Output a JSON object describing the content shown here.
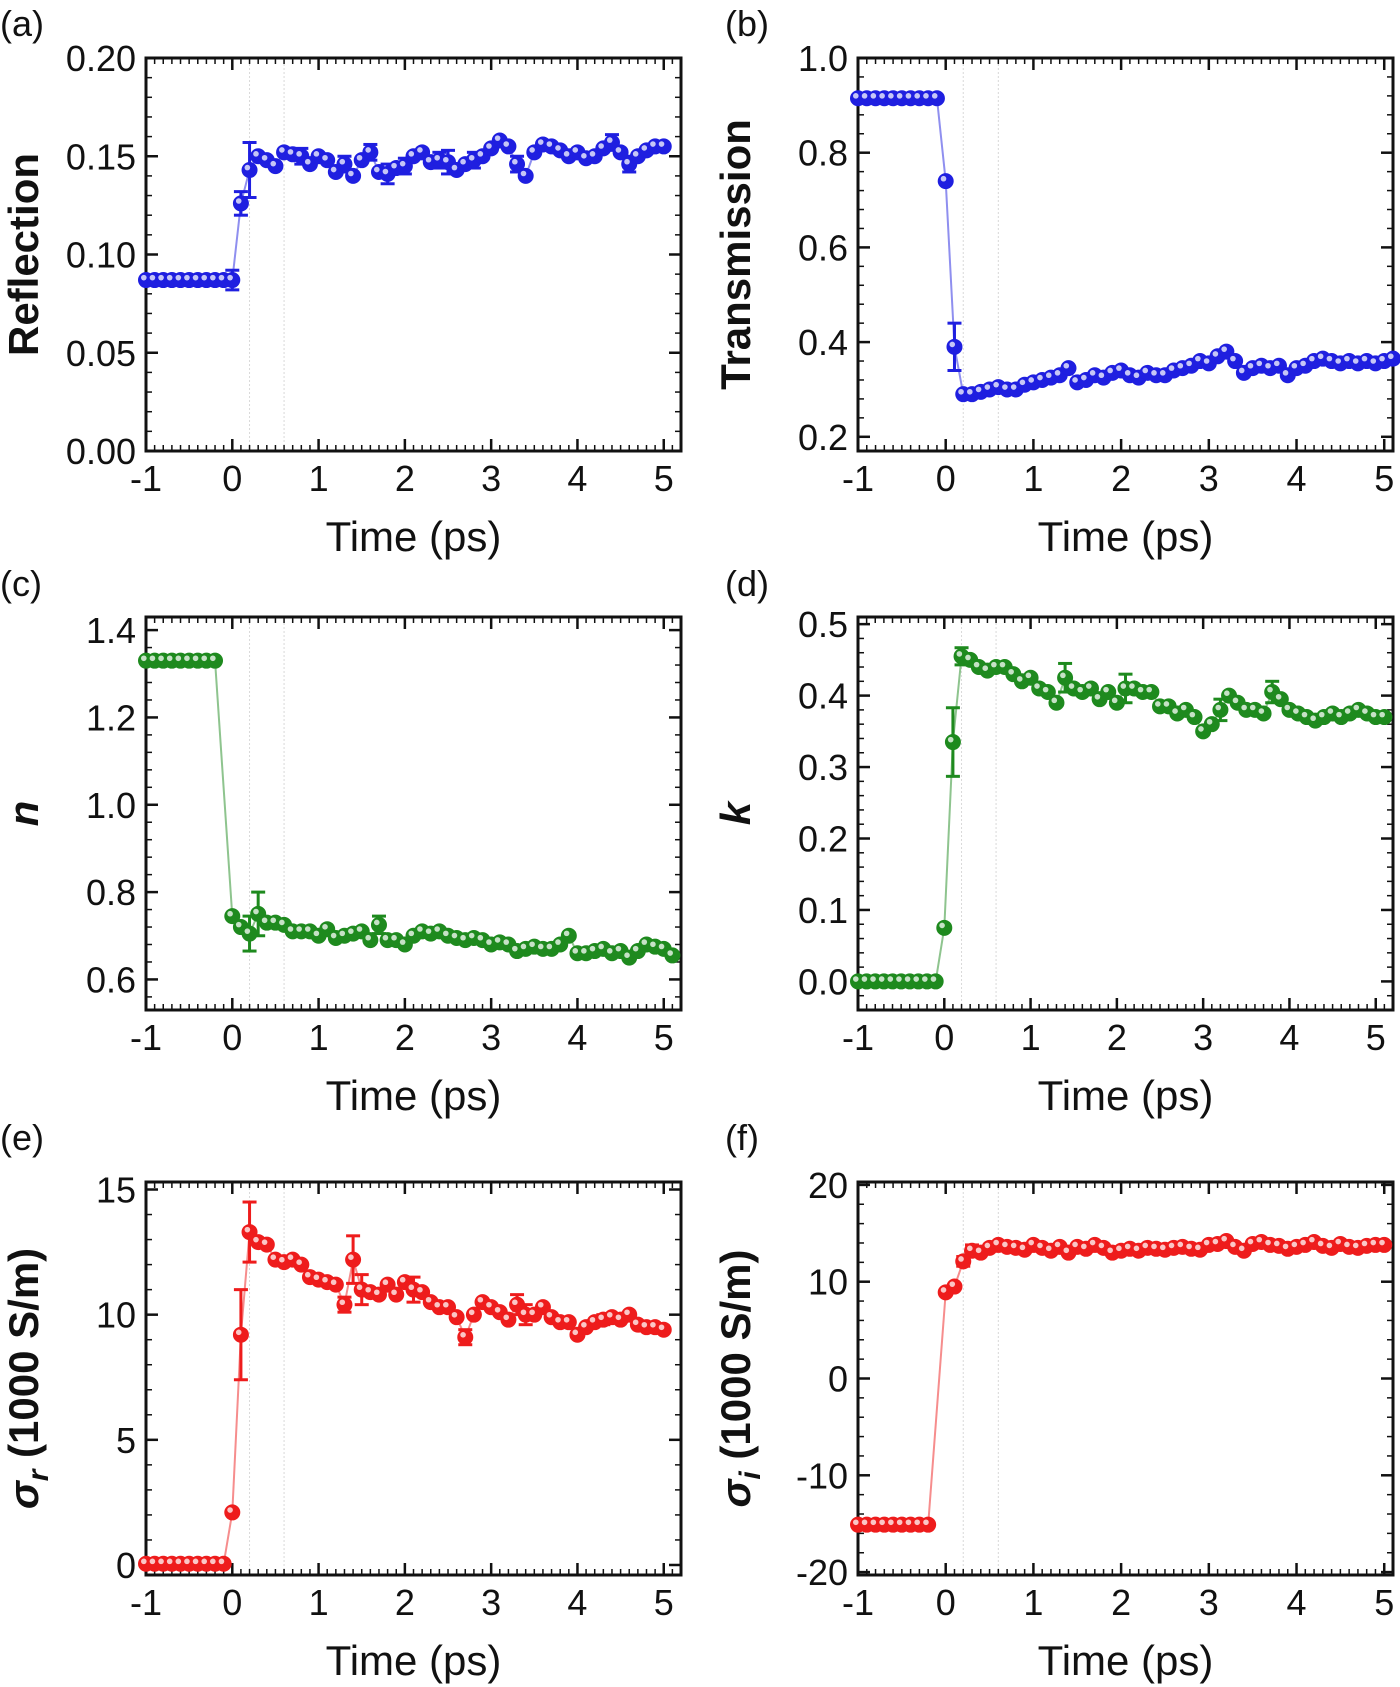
{
  "colors": {
    "blue": "#1f1fe0",
    "green": "#1e8a1e",
    "red": "#ee1c1c"
  },
  "chart_data": [
    {
      "panel": "(a)",
      "type": "scatter",
      "series_color": "blue",
      "xlabel": "Time (ps)",
      "ylabel": "Reflection",
      "ylabel_style": "text",
      "xlim": [
        -1,
        5.2
      ],
      "ylim": [
        0,
        0.2
      ],
      "xticks": [
        "-1",
        "0",
        "1",
        "2",
        "3",
        "4",
        "5"
      ],
      "xtick_values": [
        -1,
        0,
        1,
        2,
        3,
        4,
        5
      ],
      "yticks": [
        "0.00",
        "0.05",
        "0.10",
        "0.15",
        "0.20"
      ],
      "ytick_values": [
        0,
        0.05,
        0.1,
        0.15,
        0.2
      ],
      "x_start": -1,
      "x_step": 0.1,
      "values": [
        0.087,
        0.087,
        0.087,
        0.087,
        0.087,
        0.087,
        0.087,
        0.087,
        0.087,
        0.087,
        0.087,
        0.126,
        0.143,
        0.15,
        0.148,
        0.145,
        0.152,
        0.151,
        0.15,
        0.146,
        0.15,
        0.148,
        0.142,
        0.146,
        0.14,
        0.148,
        0.152,
        0.142,
        0.141,
        0.144,
        0.145,
        0.15,
        0.152,
        0.147,
        0.148,
        0.147,
        0.143,
        0.146,
        0.148,
        0.15,
        0.154,
        0.158,
        0.155,
        0.146,
        0.14,
        0.152,
        0.156,
        0.155,
        0.153,
        0.15,
        0.152,
        0.149,
        0.15,
        0.154,
        0.157,
        0.152,
        0.146,
        0.15,
        0.153,
        0.155,
        0.155
      ],
      "errors": {
        "10": 0.005,
        "11": 0.006,
        "12": 0.014,
        "18": 0.004,
        "23": 0.004,
        "26": 0.004,
        "28": 0.005,
        "30": 0.004,
        "34": 0.004,
        "35": 0.006,
        "38": 0.004,
        "43": 0.004,
        "54": 0.004,
        "56": 0.004
      }
    },
    {
      "panel": "(b)",
      "type": "scatter",
      "series_color": "blue",
      "xlabel": "Time (ps)",
      "ylabel": "Transmission",
      "ylabel_style": "text",
      "xlim": [
        -1,
        5.1
      ],
      "ylim": [
        0.17,
        1.0
      ],
      "xticks": [
        "-1",
        "0",
        "1",
        "2",
        "3",
        "4",
        "5"
      ],
      "xtick_values": [
        -1,
        0,
        1,
        2,
        3,
        4,
        5
      ],
      "yticks": [
        "0.2",
        "0.4",
        "0.6",
        "0.8",
        "1.0"
      ],
      "ytick_values": [
        0.2,
        0.4,
        0.6,
        0.8,
        1.0
      ],
      "x_start": -1,
      "x_step": 0.1,
      "values": [
        0.915,
        0.915,
        0.915,
        0.915,
        0.915,
        0.915,
        0.915,
        0.915,
        0.915,
        0.915,
        0.74,
        0.39,
        0.29,
        0.29,
        0.295,
        0.3,
        0.305,
        0.3,
        0.3,
        0.31,
        0.315,
        0.32,
        0.325,
        0.33,
        0.345,
        0.315,
        0.32,
        0.33,
        0.325,
        0.335,
        0.34,
        0.33,
        0.325,
        0.335,
        0.33,
        0.33,
        0.34,
        0.345,
        0.35,
        0.36,
        0.355,
        0.37,
        0.38,
        0.36,
        0.335,
        0.345,
        0.35,
        0.345,
        0.35,
        0.33,
        0.345,
        0.35,
        0.36,
        0.365,
        0.36,
        0.355,
        0.36,
        0.355,
        0.36,
        0.355,
        0.36,
        0.365
      ],
      "errors": {
        "11": 0.05
      }
    },
    {
      "panel": "(c)",
      "type": "scatter",
      "series_color": "green",
      "xlabel": "Time (ps)",
      "ylabel": "n",
      "ylabel_style": "italic",
      "xlim": [
        -1,
        5.2
      ],
      "ylim": [
        0.53,
        1.43
      ],
      "xticks": [
        "-1",
        "0",
        "1",
        "2",
        "3",
        "4",
        "5"
      ],
      "xtick_values": [
        -1,
        0,
        1,
        2,
        3,
        4,
        5
      ],
      "yticks": [
        "0.6",
        "0.8",
        "1.0",
        "1.2",
        "1.4"
      ],
      "ytick_values": [
        0.6,
        0.8,
        1.0,
        1.2,
        1.4
      ],
      "x_start": -1,
      "x_step": 0.1,
      "values": [
        1.33,
        1.33,
        1.33,
        1.33,
        1.33,
        1.33,
        1.33,
        1.33,
        1.33,
        null,
        0.745,
        0.72,
        0.705,
        0.75,
        0.73,
        0.73,
        0.725,
        0.71,
        0.71,
        0.71,
        0.7,
        0.715,
        0.695,
        0.7,
        0.705,
        0.71,
        0.69,
        0.725,
        0.69,
        0.69,
        0.68,
        0.7,
        0.71,
        0.705,
        0.71,
        0.7,
        0.695,
        0.69,
        0.695,
        0.69,
        0.68,
        0.685,
        0.68,
        0.665,
        0.67,
        0.675,
        0.67,
        0.67,
        0.68,
        0.7,
        0.66,
        0.66,
        0.665,
        0.67,
        0.66,
        0.665,
        0.65,
        0.665,
        0.68,
        0.675,
        0.67,
        0.655
      ],
      "errors": {
        "12": 0.04,
        "13": 0.05,
        "27": 0.02
      }
    },
    {
      "panel": "(d)",
      "type": "scatter",
      "series_color": "green",
      "xlabel": "Time (ps)",
      "ylabel": "k",
      "ylabel_style": "italic",
      "xlim": [
        -1,
        5.2
      ],
      "ylim": [
        -0.04,
        0.51
      ],
      "xticks": [
        "-1",
        "0",
        "1",
        "2",
        "3",
        "4",
        "5"
      ],
      "xtick_values": [
        -1,
        0,
        1,
        2,
        3,
        4,
        5
      ],
      "yticks": [
        "0.0",
        "0.1",
        "0.2",
        "0.3",
        "0.4",
        "0.5"
      ],
      "ytick_values": [
        0,
        0.1,
        0.2,
        0.3,
        0.4,
        0.5
      ],
      "x_start": -1,
      "x_step": 0.1,
      "values": [
        0.0,
        0.0,
        0.0,
        0.0,
        0.0,
        0.0,
        0.0,
        0.0,
        0.0,
        0.0,
        0.075,
        0.335,
        0.455,
        0.45,
        0.44,
        0.435,
        0.44,
        0.44,
        0.43,
        0.42,
        0.425,
        0.41,
        0.405,
        0.39,
        0.425,
        0.41,
        0.405,
        0.41,
        0.395,
        0.405,
        0.39,
        0.41,
        0.41,
        0.405,
        0.405,
        0.385,
        0.385,
        0.375,
        0.38,
        0.37,
        0.35,
        0.36,
        0.38,
        0.4,
        0.39,
        0.38,
        0.38,
        0.375,
        0.405,
        0.395,
        0.38,
        0.375,
        0.37,
        0.365,
        0.37,
        0.375,
        0.37,
        0.375,
        0.38,
        0.375,
        0.37,
        0.37
      ],
      "errors": {
        "11": 0.048,
        "12": 0.012,
        "24": 0.02,
        "31": 0.02,
        "42": 0.015,
        "48": 0.015
      }
    },
    {
      "panel": "(e)",
      "type": "scatter",
      "series_color": "red",
      "xlabel": "Time (ps)",
      "ylabel": "σr (1000 S/m)",
      "ylabel_style": "sigma",
      "ylabel_symbol": "σ",
      "ylabel_subscript": "r",
      "ylabel_rest": " (1000 S/m)",
      "xlim": [
        -1,
        5.2
      ],
      "ylim": [
        -0.4,
        15.3
      ],
      "xticks": [
        "-1",
        "0",
        "1",
        "2",
        "3",
        "4",
        "5"
      ],
      "xtick_values": [
        -1,
        0,
        1,
        2,
        3,
        4,
        5
      ],
      "yticks": [
        "0",
        "5",
        "10",
        "15"
      ],
      "ytick_values": [
        0,
        5,
        10,
        15
      ],
      "x_start": -1,
      "x_step": 0.1,
      "values": [
        0.05,
        0.05,
        0.05,
        0.05,
        0.05,
        0.05,
        0.05,
        0.05,
        0.05,
        0.05,
        2.1,
        9.2,
        13.3,
        12.9,
        12.8,
        12.2,
        12.1,
        12.2,
        12.0,
        11.5,
        11.4,
        11.3,
        11.2,
        10.4,
        12.2,
        11.0,
        10.9,
        10.8,
        11.2,
        10.8,
        11.3,
        11.0,
        10.9,
        10.5,
        10.3,
        10.3,
        9.9,
        9.1,
        10.0,
        10.5,
        10.3,
        10.1,
        9.8,
        10.4,
        10.0,
        10.0,
        10.3,
        9.9,
        9.7,
        9.7,
        9.2,
        9.5,
        9.7,
        9.8,
        9.9,
        9.8,
        10.0,
        9.6,
        9.5,
        9.5,
        9.4
      ],
      "errors": {
        "11": 1.8,
        "12": 1.2,
        "23": 0.3,
        "24": 0.95,
        "25": 0.6,
        "31": 0.5,
        "37": 0.3,
        "43": 0.4,
        "44": 0.4,
        "53": 0.2
      }
    },
    {
      "panel": "(f)",
      "type": "scatter",
      "series_color": "red",
      "xlabel": "Time (ps)",
      "ylabel": "σi (1000 S/m)",
      "ylabel_style": "sigma",
      "ylabel_symbol": "σ",
      "ylabel_subscript": "i",
      "ylabel_rest": " (1000 S/m)",
      "xlim": [
        -1,
        5.1
      ],
      "ylim": [
        -20.3,
        20.3
      ],
      "xticks": [
        "-1",
        "0",
        "1",
        "2",
        "3",
        "4",
        "5"
      ],
      "xtick_values": [
        -1,
        0,
        1,
        2,
        3,
        4,
        5
      ],
      "yticks": [
        "-20",
        "-10",
        "0",
        "10",
        "20"
      ],
      "ytick_values": [
        -20,
        -10,
        0,
        10,
        20
      ],
      "x_start": -1,
      "x_step": 0.1,
      "values": [
        -15.1,
        -15.1,
        -15.1,
        -15.1,
        -15.1,
        -15.1,
        -15.1,
        -15.1,
        -15.1,
        null,
        8.9,
        9.5,
        12.1,
        13.2,
        13.0,
        13.5,
        13.8,
        13.6,
        13.5,
        13.3,
        13.8,
        13.5,
        13.2,
        13.6,
        13.0,
        13.6,
        13.4,
        13.8,
        13.5,
        13.0,
        13.2,
        13.4,
        13.2,
        13.5,
        13.4,
        13.3,
        13.5,
        13.6,
        13.4,
        13.3,
        13.8,
        13.9,
        14.2,
        13.6,
        13.2,
        13.9,
        14.1,
        13.8,
        13.7,
        13.4,
        13.6,
        13.8,
        14.1,
        13.7,
        13.5,
        13.9,
        13.6,
        13.5,
        13.7,
        13.8,
        13.8
      ],
      "errors": {
        "12": 0.5,
        "13": 0.6
      }
    }
  ]
}
